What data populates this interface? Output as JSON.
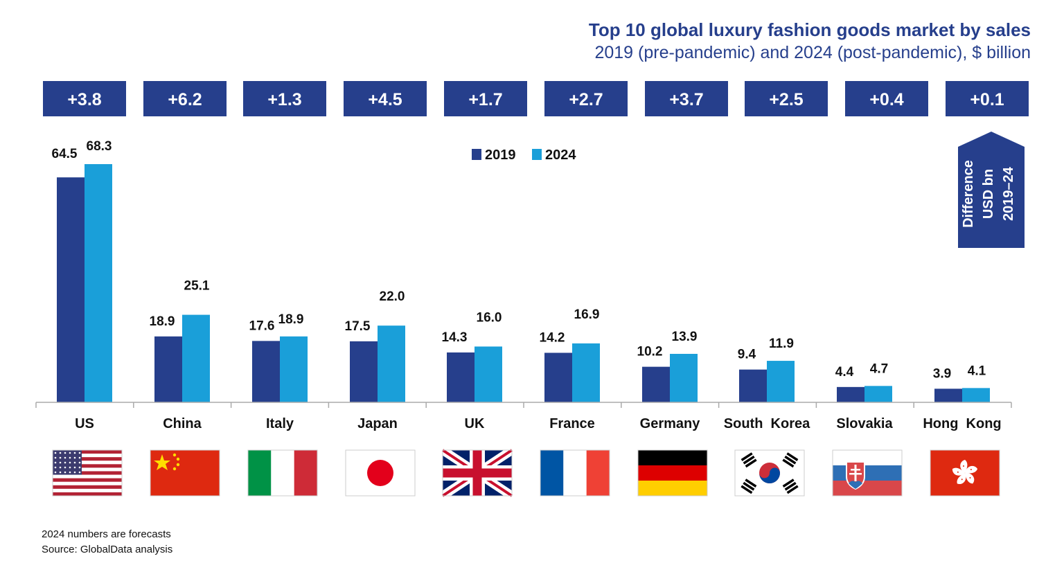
{
  "header": {
    "title": "Top 10 global luxury fashion goods market by sales",
    "subtitle": "2019 (pre-pandemic) and 2024 (post-pandemic), $ billion"
  },
  "callout": {
    "lines": [
      "Difference",
      "USD bn",
      "2019–24"
    ]
  },
  "footer": {
    "note": "2024 numbers are forecasts",
    "source": "Source: GlobalData analysis"
  },
  "colors": {
    "series_2019": "#263f8c",
    "series_2024": "#1a9fd9",
    "box": "#263f8c",
    "axis": "#aaaaaa",
    "text": "#111111"
  },
  "chart_data": {
    "type": "bar",
    "title": "Top 10 global luxury fashion goods market by sales",
    "subtitle": "2019 (pre-pandemic) and 2024 (post-pandemic), $ billion",
    "categories": [
      "US",
      "China",
      "Italy",
      "Japan",
      "UK",
      "France",
      "Germany",
      "South  Korea",
      "Slovakia",
      "Hong  Kong"
    ],
    "series": [
      {
        "name": "2019",
        "values": [
          64.5,
          18.9,
          17.6,
          17.5,
          14.3,
          14.2,
          10.2,
          9.4,
          4.4,
          3.9
        ]
      },
      {
        "name": "2024",
        "values": [
          68.3,
          25.1,
          18.9,
          22.0,
          16.0,
          16.9,
          13.9,
          11.9,
          4.7,
          4.1
        ]
      }
    ],
    "data_labels": {
      "2019": [
        "64.5",
        "18.9",
        "17.6",
        "17.5",
        "14.3",
        "14.2",
        "10.2",
        "9.4",
        "4.4",
        "3.9"
      ],
      "2024": [
        "68.3",
        "25.1",
        "18.9",
        "22.0",
        "16.0",
        "16.9",
        "13.9",
        "11.9",
        "4.7",
        "4.1"
      ]
    },
    "differences": [
      "+3.8",
      "+6.2",
      "+1.3",
      "+4.5",
      "+1.7",
      "+2.7",
      "+3.7",
      "+2.5",
      "+0.4",
      "+0.1"
    ],
    "flags": [
      "us-flag",
      "china-flag",
      "italy-flag",
      "japan-flag",
      "uk-flag",
      "france-flag",
      "germany-flag",
      "south-korea-flag",
      "slovakia-flag",
      "hong-kong-flag"
    ],
    "legend": {
      "entries": [
        "2019",
        "2024"
      ],
      "position": "top-center"
    },
    "ylim": [
      0,
      70
    ],
    "grid": false,
    "xlabel": "",
    "ylabel": ""
  }
}
